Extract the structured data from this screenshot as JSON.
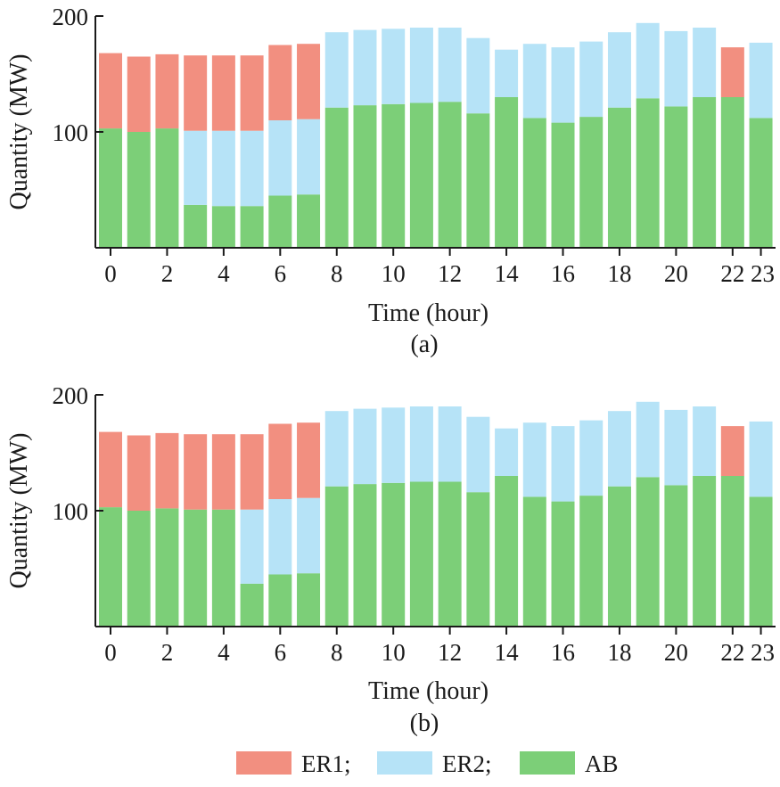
{
  "chart_data": [
    {
      "type": "bar",
      "stacked": true,
      "panel_label": "(a)",
      "xlabel": "Time (hour)",
      "ylabel": "Quantity (MW)",
      "ylim": [
        0,
        200
      ],
      "yticks": [
        100,
        200
      ],
      "xticks": [
        0,
        2,
        4,
        6,
        8,
        10,
        12,
        14,
        16,
        18,
        20,
        22,
        23
      ],
      "categories": [
        0,
        1,
        2,
        3,
        4,
        5,
        6,
        7,
        8,
        9,
        10,
        11,
        12,
        13,
        14,
        15,
        16,
        17,
        18,
        19,
        20,
        21,
        22,
        23
      ],
      "series": [
        {
          "name": "AB",
          "color": "#7ccf78",
          "values": [
            103,
            100,
            103,
            37,
            36,
            36,
            45,
            46,
            121,
            123,
            124,
            125,
            126,
            116,
            130,
            112,
            108,
            113,
            121,
            129,
            122,
            130,
            130,
            112
          ]
        },
        {
          "name": "ER2",
          "color": "#b6e3f7",
          "values": [
            0,
            0,
            0,
            64,
            65,
            65,
            65,
            65,
            65,
            65,
            65,
            65,
            64,
            65,
            41,
            64,
            65,
            65,
            65,
            65,
            65,
            60,
            0,
            65
          ]
        },
        {
          "name": "ER1",
          "color": "#f28f80",
          "values": [
            65,
            65,
            64,
            65,
            65,
            65,
            65,
            65,
            0,
            0,
            0,
            0,
            0,
            0,
            0,
            0,
            0,
            0,
            0,
            0,
            0,
            0,
            43,
            0
          ]
        }
      ],
      "grid": false
    },
    {
      "type": "bar",
      "stacked": true,
      "panel_label": "(b)",
      "xlabel": "Time (hour)",
      "ylabel": "Quantity (MW)",
      "ylim": [
        0,
        200
      ],
      "yticks": [
        100,
        200
      ],
      "xticks": [
        0,
        2,
        4,
        6,
        8,
        10,
        12,
        14,
        16,
        18,
        20,
        22,
        23
      ],
      "categories": [
        0,
        1,
        2,
        3,
        4,
        5,
        6,
        7,
        8,
        9,
        10,
        11,
        12,
        13,
        14,
        15,
        16,
        17,
        18,
        19,
        20,
        21,
        22,
        23
      ],
      "series": [
        {
          "name": "AB",
          "color": "#7ccf78",
          "values": [
            103,
            100,
            102,
            101,
            101,
            37,
            45,
            46,
            121,
            123,
            124,
            125,
            125,
            116,
            130,
            112,
            108,
            113,
            121,
            129,
            122,
            130,
            130,
            112
          ]
        },
        {
          "name": "ER2",
          "color": "#b6e3f7",
          "values": [
            0,
            0,
            0,
            0,
            0,
            64,
            65,
            65,
            65,
            65,
            65,
            65,
            65,
            65,
            41,
            64,
            65,
            65,
            65,
            65,
            65,
            60,
            0,
            65
          ]
        },
        {
          "name": "ER1",
          "color": "#f28f80",
          "values": [
            65,
            65,
            65,
            65,
            65,
            65,
            65,
            65,
            0,
            0,
            0,
            0,
            0,
            0,
            0,
            0,
            0,
            0,
            0,
            0,
            0,
            0,
            43,
            0
          ]
        }
      ],
      "grid": false
    }
  ],
  "legend": {
    "placement": "bottom-center",
    "items": [
      {
        "label": "ER1;",
        "color": "#f28f80"
      },
      {
        "label": "ER2;",
        "color": "#b6e3f7"
      },
      {
        "label": "AB",
        "color": "#7ccf78"
      }
    ]
  }
}
